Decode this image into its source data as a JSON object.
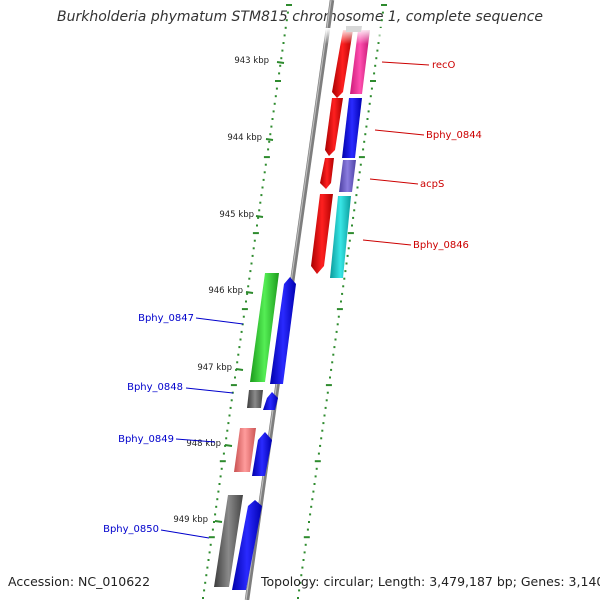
{
  "title": "Burkholderia phymatum STM815 chromosome 1, complete sequence",
  "footer": {
    "accession": "Accession: NC_010622",
    "summary": "Topology: circular; Length: 3,479,187 bp; Genes: 3,140"
  },
  "colors": {
    "background": "#ffffff",
    "backbone": "#8c8c8c",
    "tick_dots": "#2e8b2e",
    "right_labels": "#cc0000",
    "left_labels": "#0000cc"
  },
  "scale_labels": [
    "943 kbp",
    "944 kbp",
    "945 kbp",
    "946 kbp",
    "947 kbp",
    "948 kbp",
    "949 kbp"
  ],
  "right_genes": [
    {
      "name": "recO",
      "color": "#ff2a9a"
    },
    {
      "name": "Bphy_0844",
      "color": "#1a1aff"
    },
    {
      "name": "acpS",
      "color": "#7766cc"
    },
    {
      "name": "Bphy_0846",
      "color": "#18c8c8"
    }
  ],
  "left_genes": [
    {
      "name": "Bphy_0847",
      "color": "#2fd12f"
    },
    {
      "name": "Bphy_0848",
      "color": "#666666"
    },
    {
      "name": "Bphy_0849",
      "color": "#ee7777"
    },
    {
      "name": "Bphy_0850",
      "color": "#666666"
    }
  ]
}
